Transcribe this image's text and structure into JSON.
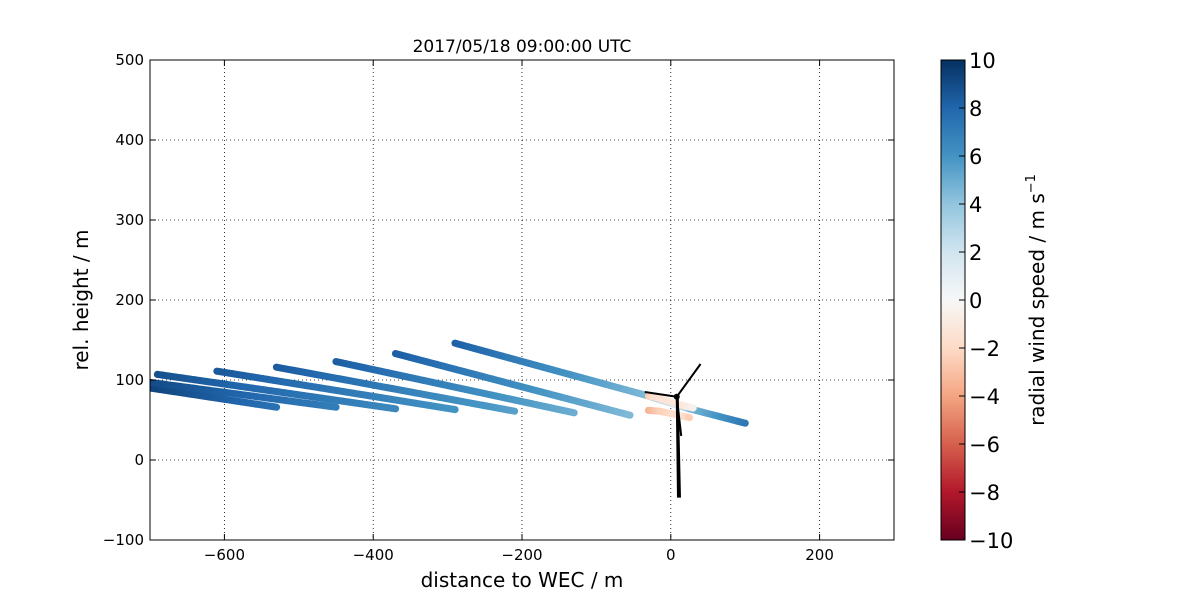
{
  "chart_data": {
    "type": "scatter",
    "title": "2017/05/18 09:00:00 UTC",
    "xlabel": "distance to WEC / m",
    "ylabel": "rel. height / m",
    "xlim": [
      -700,
      300
    ],
    "ylim": [
      -100,
      500
    ],
    "x_ticks": [
      -600,
      -400,
      -200,
      0,
      200
    ],
    "x_tick_labels": [
      "−600",
      "−400",
      "−200",
      "0",
      "200"
    ],
    "y_ticks": [
      -100,
      0,
      100,
      200,
      300,
      400,
      500
    ],
    "y_tick_labels": [
      "−100",
      "0",
      "100",
      "200",
      "300",
      "400",
      "500"
    ],
    "grid": true,
    "colorbar": {
      "label": "radial wind speed / m s",
      "label_superscript": "−1",
      "range": [
        -10,
        10
      ],
      "colormap": "RdBu",
      "ticks": [
        -10,
        -8,
        -6,
        -4,
        -2,
        0,
        2,
        4,
        6,
        8,
        10
      ],
      "tick_labels": [
        "−10",
        "−8",
        "−6",
        "−4",
        "−2",
        "0",
        "2",
        "4",
        "6",
        "8",
        "10"
      ]
    },
    "series": [
      {
        "x": [
          -700,
          -530
        ],
        "y": [
          90,
          66
        ],
        "speed": [
          9.3,
          7.5
        ]
      },
      {
        "x": [
          -700,
          -450
        ],
        "y": [
          97,
          66
        ],
        "speed": [
          9.0,
          7.0
        ]
      },
      {
        "x": [
          -690,
          -370
        ],
        "y": [
          107,
          64
        ],
        "speed": [
          8.8,
          6.5
        ]
      },
      {
        "x": [
          -610,
          -290
        ],
        "y": [
          111,
          63
        ],
        "speed": [
          8.5,
          6.0
        ]
      },
      {
        "x": [
          -530,
          -210
        ],
        "y": [
          116,
          61
        ],
        "speed": [
          8.4,
          5.5
        ]
      },
      {
        "x": [
          -450,
          -130
        ],
        "y": [
          123,
          59
        ],
        "speed": [
          8.3,
          5.0
        ]
      },
      {
        "x": [
          -370,
          -55
        ],
        "y": [
          133,
          56
        ],
        "speed": [
          8.3,
          4.5
        ]
      },
      {
        "x": [
          -290,
          -30,
          10,
          25,
          100
        ],
        "y": [
          146,
          80,
          68,
          64,
          46
        ],
        "speed": [
          8.2,
          4.5,
          1.5,
          4.5,
          7.2
        ]
      },
      {
        "x": [
          -30,
          -20,
          20,
          30
        ],
        "y": [
          80,
          78,
          67,
          65
        ],
        "speed": [
          -2.5,
          -1.5,
          -1.0,
          -0.5
        ]
      },
      {
        "x": [
          -30,
          -15,
          15,
          25
        ],
        "y": [
          62,
          61,
          55,
          53
        ],
        "speed": [
          -3.5,
          -2.5,
          -1.5,
          -2.5
        ]
      }
    ],
    "turbine": {
      "hub": [
        8,
        79
      ],
      "tower_base": [
        11,
        -47
      ],
      "blade_tips": [
        [
          40,
          120
        ],
        [
          -35,
          85
        ],
        [
          14,
          30
        ]
      ]
    }
  }
}
